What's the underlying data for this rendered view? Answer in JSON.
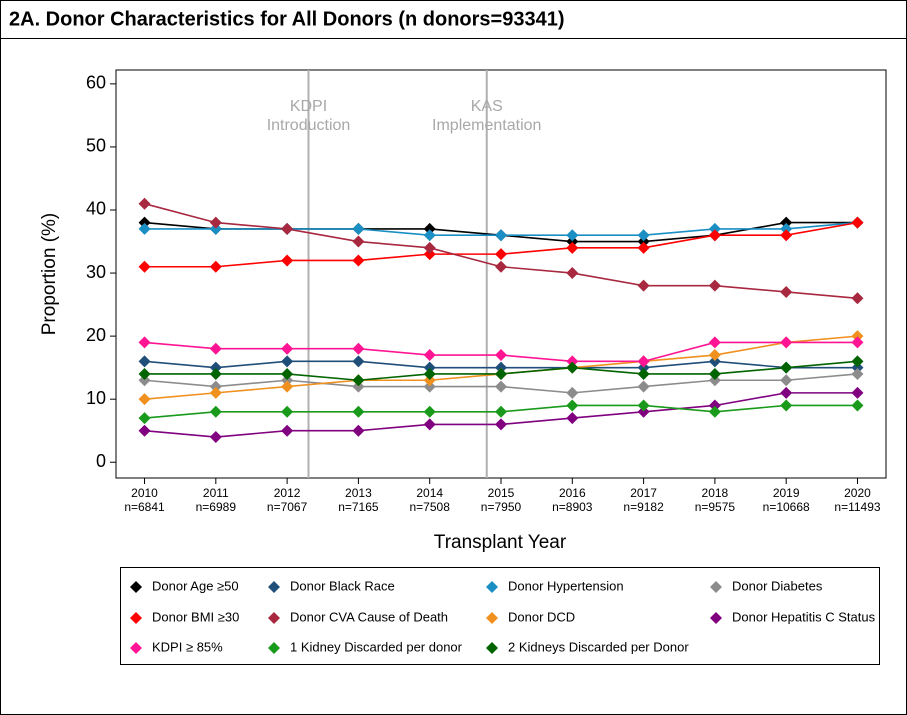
{
  "chart_data": {
    "type": "line",
    "title": "2A. Donor Characteristics for All Donors (n donors=93341)",
    "xlabel": "Transplant Year",
    "ylabel": "Proportion (%)",
    "x": [
      2010,
      2011,
      2012,
      2013,
      2014,
      2015,
      2016,
      2017,
      2018,
      2019,
      2020
    ],
    "xticks": [
      2010,
      2011,
      2012,
      2013,
      2014,
      2015,
      2016,
      2017,
      2018,
      2019,
      2020
    ],
    "xtick_sublabels": [
      "n=6841",
      "n=6989",
      "n=7067",
      "n=7165",
      "n=7508",
      "n=7950",
      "n=8903",
      "n=9182",
      "n=9575",
      "n=10668",
      "n=11493"
    ],
    "xlim": [
      2009.6,
      2020.4
    ],
    "ylim": [
      -2.5,
      62.2
    ],
    "yticks": [
      0,
      10,
      20,
      30,
      40,
      50,
      60
    ],
    "grid": false,
    "annotations": [
      {
        "x": 2012.3,
        "text": [
          "KDPI",
          "Introduction"
        ]
      },
      {
        "x": 2014.8,
        "text": [
          "KAS",
          "Implementation"
        ]
      }
    ],
    "series": [
      {
        "name": "Donor Age ≥50",
        "color": "#000000",
        "values": [
          38,
          37,
          37,
          37,
          37,
          36,
          35,
          35,
          36,
          38,
          38
        ]
      },
      {
        "name": "Donor Black Race",
        "color": "#1f4e79",
        "values": [
          16,
          15,
          16,
          16,
          15,
          15,
          15,
          15,
          16,
          15,
          15
        ]
      },
      {
        "name": "Donor Hypertension",
        "color": "#1a8fc4",
        "values": [
          37,
          37,
          37,
          37,
          36,
          36,
          36,
          36,
          37,
          37,
          38
        ]
      },
      {
        "name": "Donor Diabetes",
        "color": "#8c8c8c",
        "values": [
          13,
          12,
          13,
          12,
          12,
          12,
          11,
          12,
          13,
          13,
          14
        ]
      },
      {
        "name": "Donor BMI ≥30",
        "color": "#ff0000",
        "values": [
          31,
          31,
          32,
          32,
          33,
          33,
          34,
          34,
          36,
          36,
          38
        ]
      },
      {
        "name": "Donor CVA Cause of Death",
        "color": "#a8283f",
        "values": [
          41,
          38,
          37,
          35,
          34,
          31,
          30,
          28,
          28,
          27,
          26
        ]
      },
      {
        "name": "Donor DCD",
        "color": "#f0901e",
        "values": [
          10,
          11,
          12,
          13,
          13,
          14,
          15,
          16,
          17,
          19,
          20
        ]
      },
      {
        "name": "Donor Hepatitis C Status",
        "color": "#800080",
        "values": [
          5,
          4,
          5,
          5,
          6,
          6,
          7,
          8,
          9,
          11,
          11
        ]
      },
      {
        "name": "KDPI ≥ 85%",
        "color": "#ff1493",
        "values": [
          19,
          18,
          18,
          18,
          17,
          17,
          16,
          16,
          19,
          19,
          19
        ]
      },
      {
        "name": "1 Kidney Discarded per donor",
        "color": "#1a9a1a",
        "values": [
          7,
          8,
          8,
          8,
          8,
          8,
          9,
          9,
          8,
          9,
          9
        ]
      },
      {
        "name": "2 Kidneys Discarded per Donor",
        "color": "#006400",
        "values": [
          14,
          14,
          14,
          13,
          14,
          14,
          15,
          14,
          14,
          15,
          16
        ]
      }
    ]
  }
}
